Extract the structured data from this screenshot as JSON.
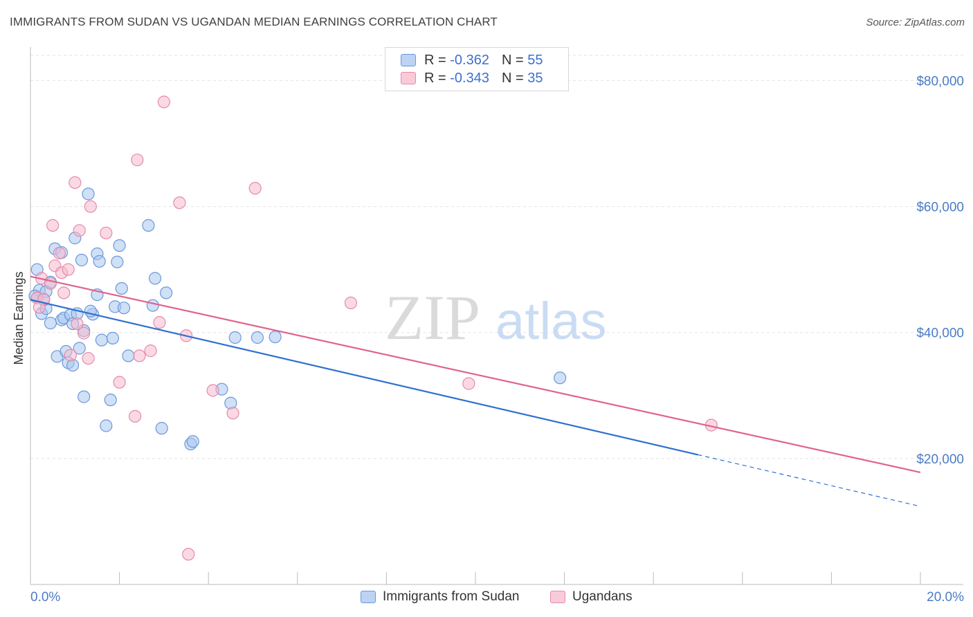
{
  "title": "IMMIGRANTS FROM SUDAN VS UGANDAN MEDIAN EARNINGS CORRELATION CHART",
  "source": "Source: ZipAtlas.com",
  "watermark": {
    "zip": "ZIP",
    "atlas": "atlas"
  },
  "legend": {
    "rows": [
      {
        "r_label": "R =",
        "r_value": "-0.362",
        "n_label": "N =",
        "n_value": "55"
      },
      {
        "r_label": "R =",
        "r_value": "-0.343",
        "n_label": "N =",
        "n_value": "35"
      }
    ]
  },
  "colors": {
    "sudan_fill": "#a9c6f0",
    "sudan_stroke": "#6a98d8",
    "sudan_line": "#2f6fd0",
    "ugandan_fill": "#f6b9cd",
    "ugandan_stroke": "#e58aa8",
    "ugandan_line": "#e0628e",
    "axis_text": "#4a7cc7",
    "grid": "#e2e2e2"
  },
  "chart_data": {
    "type": "scatter",
    "xlabel": "",
    "ylabel": "Median Earnings",
    "xlim": [
      0,
      20
    ],
    "ylim": [
      0,
      84000
    ],
    "x_tick_labels": [
      "0.0%",
      "20.0%"
    ],
    "y_ticks": [
      20000,
      40000,
      60000,
      80000
    ],
    "y_tick_labels": [
      "$20,000",
      "$40,000",
      "$60,000",
      "$80,000"
    ],
    "grid": true,
    "legend_position": "bottom",
    "series": [
      {
        "name": "Immigrants from Sudan",
        "points": [
          [
            0.15,
            50000
          ],
          [
            0.2,
            46700
          ],
          [
            0.15,
            45500
          ],
          [
            0.25,
            43000
          ],
          [
            0.35,
            46500
          ],
          [
            0.45,
            48000
          ],
          [
            0.35,
            43800
          ],
          [
            0.45,
            41500
          ],
          [
            0.55,
            53300
          ],
          [
            0.6,
            36200
          ],
          [
            0.7,
            52700
          ],
          [
            0.7,
            42000
          ],
          [
            0.75,
            42300
          ],
          [
            0.8,
            37000
          ],
          [
            0.85,
            35200
          ],
          [
            0.9,
            42800
          ],
          [
            0.95,
            41400
          ],
          [
            1.0,
            55000
          ],
          [
            1.05,
            43000
          ],
          [
            1.1,
            37500
          ],
          [
            1.15,
            51500
          ],
          [
            1.2,
            40300
          ],
          [
            1.2,
            29800
          ],
          [
            1.3,
            62000
          ],
          [
            1.4,
            42900
          ],
          [
            1.5,
            52500
          ],
          [
            1.5,
            46000
          ],
          [
            1.55,
            51300
          ],
          [
            1.6,
            38800
          ],
          [
            1.7,
            25200
          ],
          [
            1.8,
            29300
          ],
          [
            1.85,
            39100
          ],
          [
            1.9,
            44100
          ],
          [
            1.95,
            51200
          ],
          [
            2.0,
            53800
          ],
          [
            2.05,
            47000
          ],
          [
            2.1,
            43900
          ],
          [
            2.2,
            36300
          ],
          [
            2.65,
            57000
          ],
          [
            2.75,
            44300
          ],
          [
            2.8,
            48600
          ],
          [
            2.95,
            24800
          ],
          [
            3.05,
            46300
          ],
          [
            3.6,
            22300
          ],
          [
            3.65,
            22700
          ],
          [
            4.3,
            31000
          ],
          [
            4.5,
            28800
          ],
          [
            4.6,
            39200
          ],
          [
            5.1,
            39200
          ],
          [
            5.5,
            39300
          ],
          [
            11.9,
            32800
          ],
          [
            0.1,
            45800
          ],
          [
            0.3,
            45200
          ],
          [
            0.95,
            34800
          ],
          [
            1.35,
            43400
          ]
        ]
      },
      {
        "name": "Ugandans",
        "points": [
          [
            0.15,
            45500
          ],
          [
            0.25,
            48600
          ],
          [
            0.3,
            45300
          ],
          [
            0.45,
            47800
          ],
          [
            0.5,
            57000
          ],
          [
            0.55,
            50600
          ],
          [
            0.65,
            52600
          ],
          [
            0.7,
            49500
          ],
          [
            0.75,
            46300
          ],
          [
            0.85,
            50000
          ],
          [
            0.9,
            36400
          ],
          [
            1.0,
            63800
          ],
          [
            1.05,
            41400
          ],
          [
            1.1,
            56200
          ],
          [
            1.2,
            39900
          ],
          [
            1.3,
            35900
          ],
          [
            1.35,
            60000
          ],
          [
            1.7,
            55800
          ],
          [
            2.0,
            32100
          ],
          [
            2.35,
            26700
          ],
          [
            2.4,
            67400
          ],
          [
            2.45,
            36300
          ],
          [
            2.7,
            37100
          ],
          [
            2.9,
            41600
          ],
          [
            3.0,
            76600
          ],
          [
            3.35,
            60600
          ],
          [
            3.5,
            39500
          ],
          [
            3.55,
            4800
          ],
          [
            4.1,
            30800
          ],
          [
            4.55,
            27200
          ],
          [
            5.05,
            62900
          ],
          [
            7.2,
            44700
          ],
          [
            9.85,
            31900
          ],
          [
            15.3,
            25300
          ],
          [
            0.2,
            44000
          ]
        ]
      }
    ],
    "trend_lines": [
      {
        "series": "Immigrants from Sudan",
        "x": [
          0,
          15.0
        ],
        "y": [
          45200,
          20600
        ],
        "dashed_extension": {
          "x": [
            15.0,
            20.0
          ],
          "y": [
            20600,
            12400
          ]
        }
      },
      {
        "series": "Ugandans",
        "x": [
          0,
          20.0
        ],
        "y": [
          48900,
          17800
        ]
      }
    ]
  },
  "bottom_legend": [
    "Immigrants from Sudan",
    "Ugandans"
  ]
}
